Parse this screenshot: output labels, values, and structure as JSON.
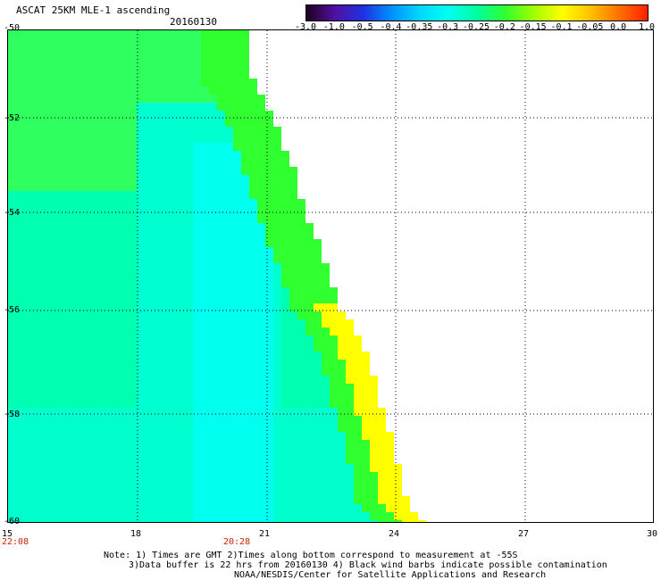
{
  "header": {
    "title": "ASCAT 25KM MLE-1 ascending",
    "date": "20160130"
  },
  "colorbar": {
    "labels": [
      "-3.0",
      "-1.0",
      "-0.5",
      "-0.4",
      "-0.35",
      "-0.3",
      "-0.25",
      "-0.2",
      "-0.15",
      "-0.1",
      "-0.05",
      "0.0",
      "1.0"
    ],
    "colors": [
      "#200020",
      "#5010a0",
      "#2030e0",
      "#0090ff",
      "#00d8ff",
      "#00ffee",
      "#00ffa0",
      "#30ff30",
      "#a0ff00",
      "#ffff00",
      "#ffc000",
      "#ff7000",
      "#ff2000"
    ]
  },
  "axes": {
    "x_ticks": [
      "15",
      "18",
      "21",
      "24",
      "27",
      "30"
    ],
    "y_ticks": [
      "-50",
      "-52",
      "-54",
      "-56",
      "-58",
      "-60"
    ],
    "times": [
      "22:08",
      "20:28"
    ]
  },
  "notes": {
    "line1": "Note: 1) Times are GMT 2)Times along bottom correspond to measurement at -55S",
    "line2": "3)Data buffer is 22 hrs from 20160130 4) Black wind barbs indicate possible contamination",
    "line3": "NOAA/NESDIS/Center for Satellite Applications and Research"
  }
}
